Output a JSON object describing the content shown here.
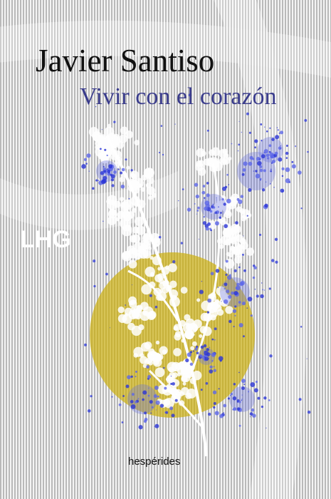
{
  "cover": {
    "author": "Javier Santiso",
    "title": "Vivir con el corazón",
    "collection": "LHG",
    "publisher": "hespérides"
  }
}
